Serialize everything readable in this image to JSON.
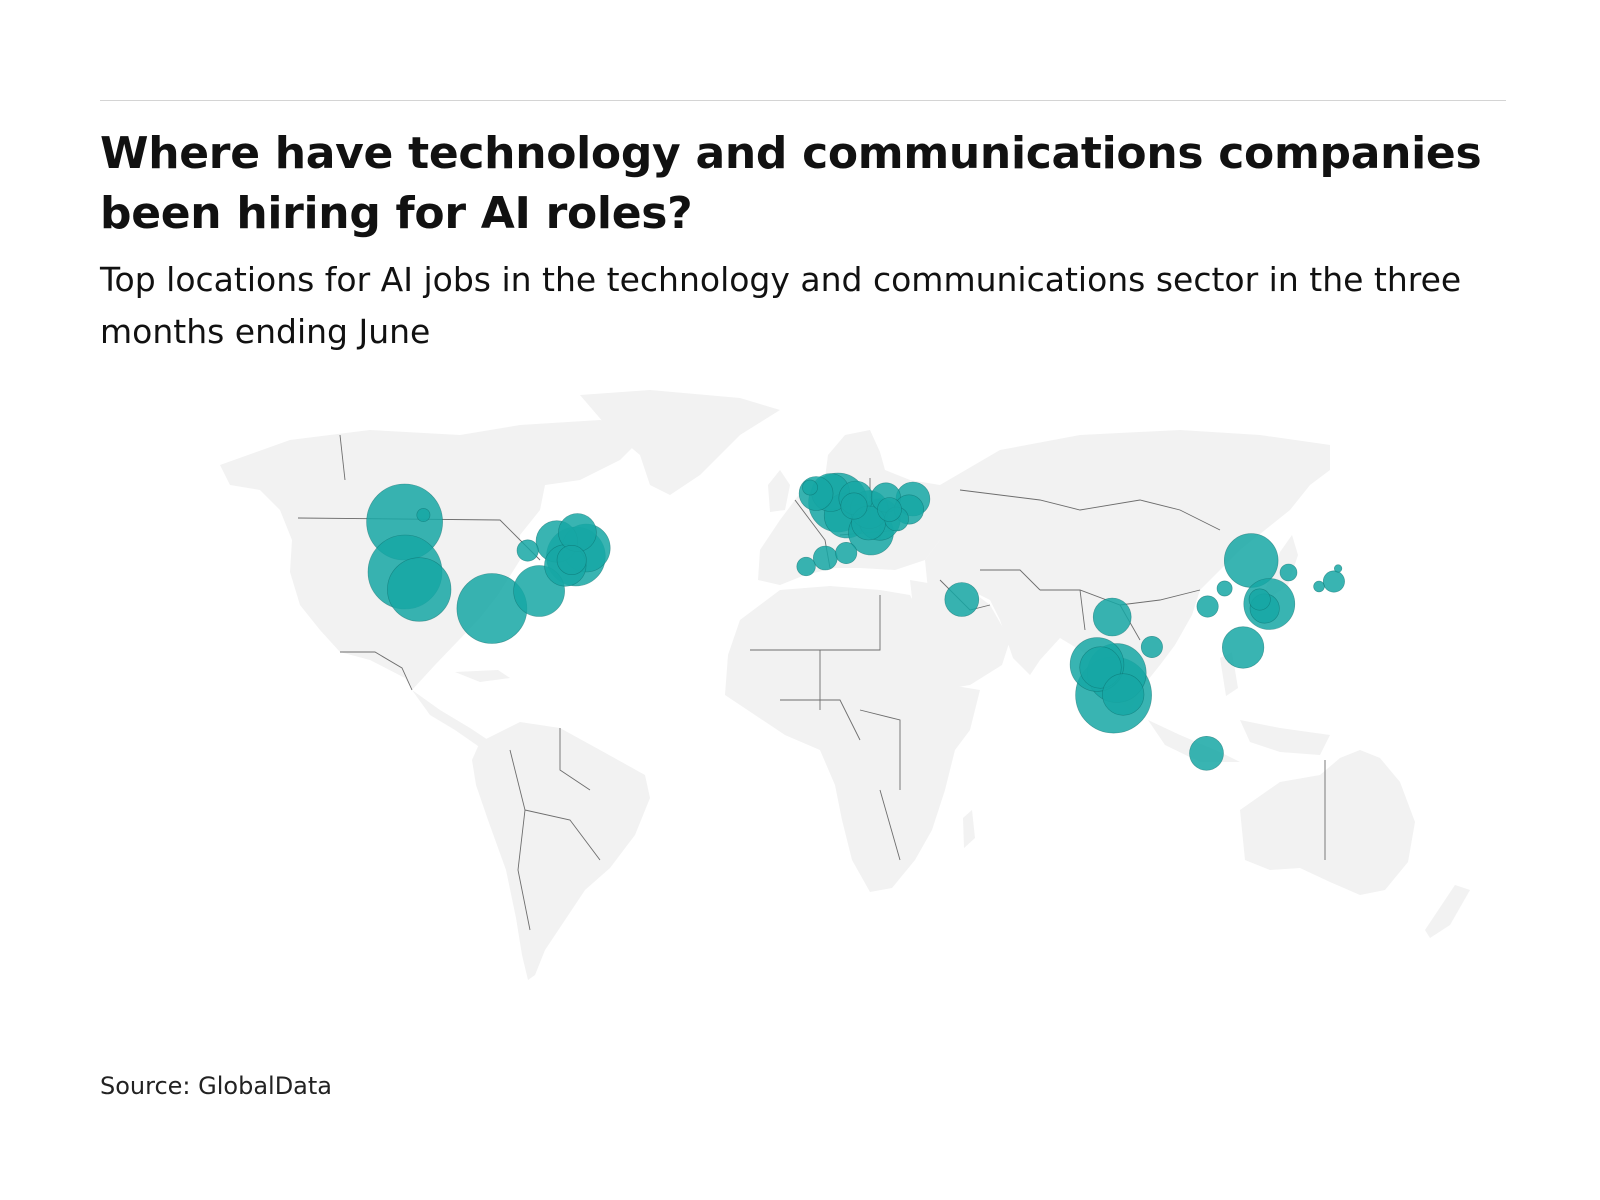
{
  "header": {
    "title": "Where have technology and communications companies been hiring for AI roles?",
    "subtitle": "Top locations for AI jobs in the technology and communications sector in the three months ending June"
  },
  "footer": {
    "source": "Source: GlobalData"
  },
  "colors": {
    "bubble": "#16a7a4",
    "land": "#f2f2f2",
    "border": "#6d6d6d"
  },
  "chart_data": {
    "type": "bubble-map",
    "title": "Where have technology and communications companies been hiring for AI roles?",
    "subtitle": "Top locations for AI jobs in the technology and communications sector in the three months ending June",
    "size_meaning": "number of AI job postings (relative)",
    "points": [
      {
        "lon": -122.3,
        "lat": 47.6,
        "value": 100
      },
      {
        "lon": -117.0,
        "lat": 49.0,
        "value": 3
      },
      {
        "lon": -122.2,
        "lat": 37.6,
        "value": 95
      },
      {
        "lon": -118.2,
        "lat": 34.1,
        "value": 70
      },
      {
        "lon": -97.7,
        "lat": 30.3,
        "value": 85
      },
      {
        "lon": -84.4,
        "lat": 33.8,
        "value": 45
      },
      {
        "lon": -87.6,
        "lat": 41.9,
        "value": 8
      },
      {
        "lon": -79.4,
        "lat": 43.7,
        "value": 30
      },
      {
        "lon": -77.0,
        "lat": 38.9,
        "value": 30
      },
      {
        "lon": -75.2,
        "lat": 40.0,
        "value": 15
      },
      {
        "lon": -74.0,
        "lat": 40.7,
        "value": 60
      },
      {
        "lon": -71.1,
        "lat": 42.4,
        "value": 40
      },
      {
        "lon": -73.6,
        "lat": 45.5,
        "value": 25
      },
      {
        "lon": -6.3,
        "lat": 53.3,
        "value": 20
      },
      {
        "lon": -8.0,
        "lat": 54.5,
        "value": 4
      },
      {
        "lon": -2.2,
        "lat": 53.5,
        "value": 25
      },
      {
        "lon": -0.1,
        "lat": 51.5,
        "value": 60
      },
      {
        "lon": 2.35,
        "lat": 48.9,
        "value": 35
      },
      {
        "lon": -3.7,
        "lat": 40.4,
        "value": 10
      },
      {
        "lon": 2.2,
        "lat": 41.4,
        "value": 8
      },
      {
        "lon": -9.1,
        "lat": 38.7,
        "value": 6
      },
      {
        "lon": 4.9,
        "lat": 52.4,
        "value": 20
      },
      {
        "lon": 4.4,
        "lat": 50.8,
        "value": 12
      },
      {
        "lon": 8.7,
        "lat": 50.1,
        "value": 25
      },
      {
        "lon": 11.6,
        "lat": 48.1,
        "value": 30
      },
      {
        "lon": 13.4,
        "lat": 52.5,
        "value": 15
      },
      {
        "lon": 9.2,
        "lat": 45.5,
        "value": 35
      },
      {
        "lon": 8.5,
        "lat": 47.4,
        "value": 20
      },
      {
        "lon": 16.4,
        "lat": 48.2,
        "value": 10
      },
      {
        "lon": 19.9,
        "lat": 50.1,
        "value": 15
      },
      {
        "lon": 21.0,
        "lat": 52.2,
        "value": 20
      },
      {
        "lon": 14.4,
        "lat": 50.1,
        "value": 10
      },
      {
        "lon": 34.8,
        "lat": 32.1,
        "value": 20
      },
      {
        "lon": 77.2,
        "lat": 28.6,
        "value": 25
      },
      {
        "lon": 72.9,
        "lat": 19.1,
        "value": 50
      },
      {
        "lon": 73.9,
        "lat": 18.5,
        "value": 30
      },
      {
        "lon": 78.5,
        "lat": 17.4,
        "value": 60
      },
      {
        "lon": 77.6,
        "lat": 12.97,
        "value": 100
      },
      {
        "lon": 80.3,
        "lat": 13.1,
        "value": 30
      },
      {
        "lon": 88.4,
        "lat": 22.6,
        "value": 8
      },
      {
        "lon": 103.8,
        "lat": 1.35,
        "value": 20
      },
      {
        "lon": 116.4,
        "lat": 39.9,
        "value": 50
      },
      {
        "lon": 121.5,
        "lat": 31.2,
        "value": 45
      },
      {
        "lon": 120.2,
        "lat": 30.3,
        "value": 15
      },
      {
        "lon": 114.1,
        "lat": 22.5,
        "value": 30
      },
      {
        "lon": 118.8,
        "lat": 32.1,
        "value": 8
      },
      {
        "lon": 104.1,
        "lat": 30.7,
        "value": 8
      },
      {
        "lon": 108.9,
        "lat": 34.3,
        "value": 4
      },
      {
        "lon": 126.9,
        "lat": 37.5,
        "value": 5
      },
      {
        "lon": 139.7,
        "lat": 35.7,
        "value": 8
      },
      {
        "lon": 135.5,
        "lat": 34.7,
        "value": 2
      },
      {
        "lon": 140.9,
        "lat": 38.3,
        "value": 1
      }
    ]
  }
}
